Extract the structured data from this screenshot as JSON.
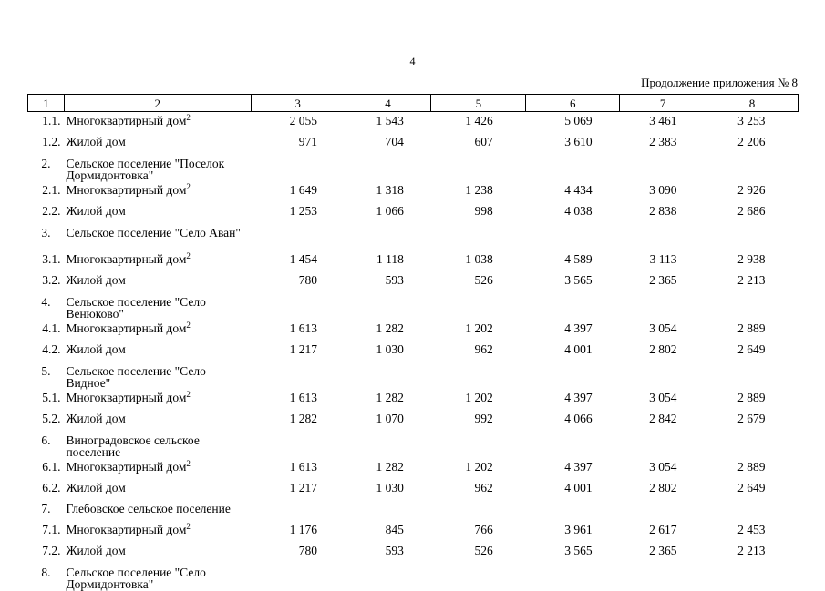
{
  "page_number": "4",
  "continuation_label": "Продолжение приложения № 8",
  "header": [
    "1",
    "2",
    "3",
    "4",
    "5",
    "6",
    "7",
    "8"
  ],
  "rows": [
    {
      "idx": "1.1.",
      "name": "Многоквартирный дом",
      "sup": "2",
      "vals": [
        "2 055",
        "1 543",
        "1 426",
        "5 069",
        "3 461",
        "3 253"
      ],
      "type": "data"
    },
    {
      "idx": "1.2.",
      "name": "Жилой дом",
      "sup": "",
      "vals": [
        "971",
        "704",
        "607",
        "3 610",
        "2 383",
        "2 206"
      ],
      "type": "data"
    },
    {
      "idx": "2.",
      "name": "Сельское поселение \"Поселок Дормидонтовка\"",
      "sup": "",
      "vals": [
        "",
        "",
        "",
        "",
        "",
        ""
      ],
      "type": "section"
    },
    {
      "idx": "2.1.",
      "name": "Многоквартирный дом",
      "sup": "2",
      "vals": [
        "1 649",
        "1 318",
        "1 238",
        "4 434",
        "3 090",
        "2 926"
      ],
      "type": "data"
    },
    {
      "idx": "2.2.",
      "name": "Жилой дом",
      "sup": "",
      "vals": [
        "1 253",
        "1 066",
        "998",
        "4 038",
        "2 838",
        "2 686"
      ],
      "type": "data"
    },
    {
      "idx": "3.",
      "name": "Сельское поселение \"Село Аван\"",
      "sup": "",
      "vals": [
        "",
        "",
        "",
        "",
        "",
        ""
      ],
      "type": "section"
    },
    {
      "idx": "3.1.",
      "name": "Многоквартирный дом",
      "sup": "2",
      "vals": [
        "1 454",
        "1 118",
        "1 038",
        "4 589",
        "3 113",
        "2 938"
      ],
      "type": "data"
    },
    {
      "idx": "3.2.",
      "name": "Жилой дом",
      "sup": "",
      "vals": [
        "780",
        "593",
        "526",
        "3 565",
        "2 365",
        "2 213"
      ],
      "type": "data"
    },
    {
      "idx": "4.",
      "name": "Сельское поселение \"Село Венюково\"",
      "sup": "",
      "vals": [
        "",
        "",
        "",
        "",
        "",
        ""
      ],
      "type": "section"
    },
    {
      "idx": "4.1.",
      "name": "Многоквартирный дом",
      "sup": "2",
      "vals": [
        "1 613",
        "1 282",
        "1 202",
        "4 397",
        "3 054",
        "2 889"
      ],
      "type": "data"
    },
    {
      "idx": "4.2.",
      "name": "Жилой дом",
      "sup": "",
      "vals": [
        "1 217",
        "1 030",
        "962",
        "4 001",
        "2 802",
        "2 649"
      ],
      "type": "data"
    },
    {
      "idx": "5.",
      "name": "Сельское поселение \"Село Видное\"",
      "sup": "",
      "vals": [
        "",
        "",
        "",
        "",
        "",
        ""
      ],
      "type": "section"
    },
    {
      "idx": "5.1.",
      "name": "Многоквартирный дом",
      "sup": "2",
      "vals": [
        "1 613",
        "1 282",
        "1 202",
        "4 397",
        "3 054",
        "2 889"
      ],
      "type": "data"
    },
    {
      "idx": "5.2.",
      "name": "Жилой дом",
      "sup": "",
      "vals": [
        "1 282",
        "1 070",
        "992",
        "4 066",
        "2 842",
        "2 679"
      ],
      "type": "data"
    },
    {
      "idx": "6.",
      "name": "Виноградовское сельское поселение",
      "sup": "",
      "vals": [
        "",
        "",
        "",
        "",
        "",
        ""
      ],
      "type": "section"
    },
    {
      "idx": "6.1.",
      "name": "Многоквартирный дом",
      "sup": "2",
      "vals": [
        "1 613",
        "1 282",
        "1 202",
        "4 397",
        "3 054",
        "2 889"
      ],
      "type": "data"
    },
    {
      "idx": "6.2.",
      "name": "Жилой дом",
      "sup": "",
      "vals": [
        "1 217",
        "1 030",
        "962",
        "4 001",
        "2 802",
        "2 649"
      ],
      "type": "data"
    },
    {
      "idx": "7.",
      "name": "Глебовское сельское поселение",
      "sup": "",
      "vals": [
        "",
        "",
        "",
        "",
        "",
        ""
      ],
      "type": "single"
    },
    {
      "idx": "7.1.",
      "name": "Многоквартирный дом",
      "sup": "2",
      "vals": [
        "1 176",
        "845",
        "766",
        "3 961",
        "2 617",
        "2 453"
      ],
      "type": "data"
    },
    {
      "idx": "7.2.",
      "name": "Жилой дом",
      "sup": "",
      "vals": [
        "780",
        "593",
        "526",
        "3 565",
        "2 365",
        "2 213"
      ],
      "type": "data"
    },
    {
      "idx": "8.",
      "name": "Сельское поселение \"Село Дормидонтовка\"",
      "sup": "",
      "vals": [
        "",
        "",
        "",
        "",
        "",
        ""
      ],
      "type": "section"
    }
  ]
}
